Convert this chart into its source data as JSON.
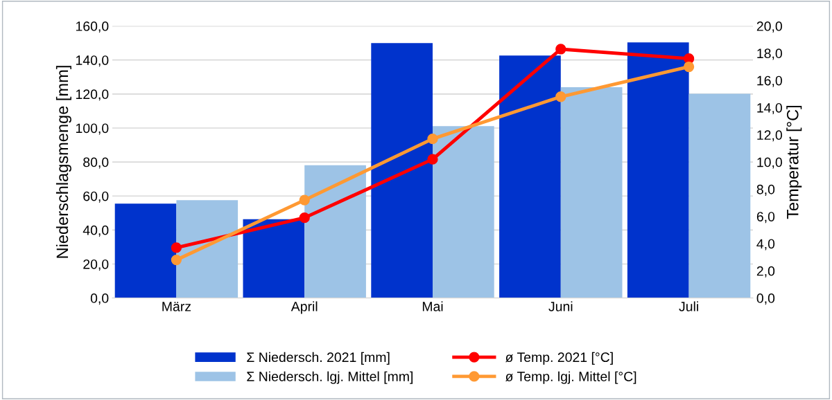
{
  "chart_data": {
    "type": "bar",
    "ylabel": "Niederschlagsmenge [mm]",
    "y2label": "Temperatur [°C]",
    "categories": [
      "März",
      "April",
      "Mai",
      "Juni",
      "Juli"
    ],
    "series": [
      {
        "name": "Σ Niedersch. 2021 [mm]",
        "color": "#0033cc",
        "values": [
          55.5,
          46.4,
          150.0,
          142.6,
          150.4
        ]
      },
      {
        "name": "Σ Niedersch. lgj. Mittel [mm]",
        "color": "#9dc3e6",
        "values": [
          57.5,
          78.1,
          101.1,
          124.0,
          120.1
        ]
      },
      {
        "name": "ø Temp. 2021 [°C]",
        "type": "line",
        "axis": "y2",
        "color": "#ff0000",
        "values": [
          3.7,
          5.9,
          10.2,
          18.3,
          17.6
        ]
      },
      {
        "name": "ø Temp. lgj. Mittel [°C]",
        "type": "line",
        "axis": "y2",
        "color": "#ff9933",
        "values": [
          2.8,
          7.2,
          11.7,
          14.8,
          17.0
        ]
      }
    ],
    "ylim": [
      0,
      160
    ],
    "yticks": [
      {
        "value": 0,
        "label": "0,0"
      },
      {
        "value": 20,
        "label": "20,0"
      },
      {
        "value": 40,
        "label": "40,0"
      },
      {
        "value": 60,
        "label": "60,0"
      },
      {
        "value": 80,
        "label": "80,0"
      },
      {
        "value": 100,
        "label": "100,0"
      },
      {
        "value": 120,
        "label": "120,0"
      },
      {
        "value": 140,
        "label": "140,0"
      },
      {
        "value": 160,
        "label": "160,0"
      }
    ],
    "y2lim": [
      0,
      20
    ],
    "y2ticks": [
      {
        "value": 0,
        "label": "0,0"
      },
      {
        "value": 2,
        "label": "2,0"
      },
      {
        "value": 4,
        "label": "4,0"
      },
      {
        "value": 6,
        "label": "6,0"
      },
      {
        "value": 8,
        "label": "8,0"
      },
      {
        "value": 10,
        "label": "10,0"
      },
      {
        "value": 12,
        "label": "12,0"
      },
      {
        "value": 14,
        "label": "14,0"
      },
      {
        "value": 16,
        "label": "16,0"
      },
      {
        "value": 18,
        "label": "18,0"
      },
      {
        "value": 20,
        "label": "20,0"
      }
    ],
    "grid": "y",
    "legend": "bottom",
    "marker": "circle",
    "line_style": "solid"
  }
}
